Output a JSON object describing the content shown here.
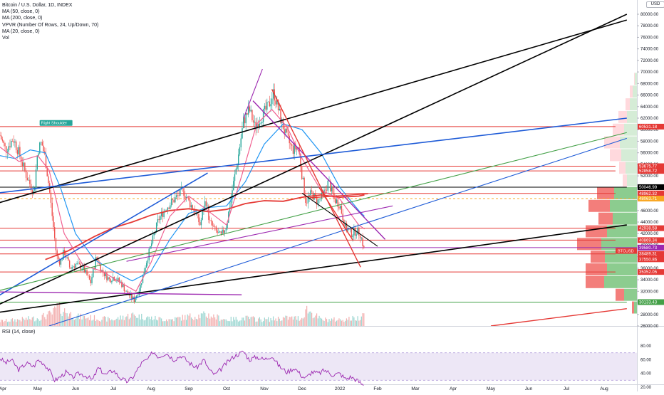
{
  "header": {
    "symbol_line": "Bitcoin / U.S. Dollar, 1D, INDEX",
    "indicators": [
      "MA (50, close, 0)",
      "MA (200, close, 0)",
      "VPVR (Number Of Rows, 24, Up/Down, 70)",
      "MA (20, close, 0)",
      "Vol"
    ],
    "currency": "USD",
    "rsi_label": "RSI (14, close)"
  },
  "colors": {
    "up": "#26a69a",
    "down": "#ef5350",
    "ma50": "#2196f3",
    "ma200": "#e53935",
    "ma20": "#f06292",
    "trend_black": "#000000",
    "trend_blue": "#1e5bd7",
    "trend_purple": "#9c27b0",
    "trend_green": "#43a047",
    "rsi": "#9c27b0",
    "rsi_band": "#ede7f6",
    "hline": "#e53935",
    "vpvr_up": "#66bb6a",
    "vpvr_down": "#ef5350"
  },
  "chart_data": {
    "type": "candlestick",
    "price_axis": {
      "ticks": [
        26000,
        28000,
        30000,
        32000,
        34000,
        36000,
        38000,
        40000,
        42000,
        44000,
        46000,
        48000,
        50000,
        52000,
        54000,
        56000,
        58000,
        60000,
        62000,
        64000,
        66000,
        68000,
        70000,
        72000,
        74000,
        76000,
        78000,
        80000
      ],
      "labels": [
        "26000.00",
        "28000.00",
        "30000.00",
        "32000.00",
        "34000.00",
        "36000.00",
        "38000.00",
        "40000.00",
        "42000.00",
        "44000.00",
        "46000.00",
        "48000.00",
        "50000.00",
        "52000.00",
        "54000.00",
        "56000.00",
        "58000.00",
        "60000.00",
        "62000.00",
        "64000.00",
        "66000.00",
        "68000.00",
        "70000.00",
        "72000.00",
        "74000.00",
        "76000.00",
        "78000.00",
        "80000.00"
      ],
      "range": [
        26000,
        80000
      ]
    },
    "time_axis": {
      "labels": [
        "Apr",
        "May",
        "Jun",
        "Jul",
        "Aug",
        "Sep",
        "Oct",
        "Nov",
        "Dec",
        "2022",
        "Feb",
        "Mar",
        "Apr",
        "May",
        "Jun",
        "Jul",
        "Aug"
      ],
      "months_from_apr_2021": [
        0,
        1,
        2,
        3,
        4,
        5,
        6,
        7,
        8,
        9,
        10,
        11,
        12,
        13,
        14,
        15,
        16
      ]
    },
    "rsi_axis": {
      "ticks": [
        20,
        40,
        60,
        80
      ],
      "labels": [
        "20.00",
        "40.00",
        "60.00",
        "80.00"
      ],
      "band": [
        30,
        70
      ]
    },
    "price_tags": [
      {
        "value": 60531.18,
        "label": "60531.18",
        "color": "#e53935"
      },
      {
        "value": 53675.77,
        "label": "53675.77",
        "color": "#e53935"
      },
      {
        "value": 52858.72,
        "label": "52858.72",
        "color": "#e53935"
      },
      {
        "value": 50046.99,
        "label": "50046.99",
        "color": "#000000"
      },
      {
        "value": 48962.32,
        "label": "48962.32",
        "color": "#e53935"
      },
      {
        "value": 48063.71,
        "label": "48063.71",
        "color": "#f9a825"
      },
      {
        "value": 42938.58,
        "label": "42938.58",
        "color": "#e53935"
      },
      {
        "value": 40869.34,
        "label": "40869.34",
        "color": "#e53935"
      },
      {
        "value": 39580.73,
        "label": "39580.73",
        "color": "#9c27b0"
      },
      {
        "value": 38489.31,
        "label": "38489.31",
        "color": "#e53935"
      },
      {
        "value": 37550.86,
        "label": "37550.86",
        "color": "#e53935"
      },
      {
        "value": 35352.05,
        "label": "35352.05",
        "color": "#e53935"
      },
      {
        "value": 30133.43,
        "label": "30133.43",
        "color": "#43a047"
      }
    ],
    "current_tag": {
      "label": "BTCUSD",
      "value": 39000,
      "color": "#e53935"
    },
    "annotations": [
      {
        "text": "Right Shoulder",
        "month": 1.05,
        "value": 60800
      }
    ],
    "close_path": [
      [
        0.0,
        59000
      ],
      [
        0.15,
        56500
      ],
      [
        0.35,
        58500
      ],
      [
        0.5,
        56000
      ],
      [
        0.7,
        52000
      ],
      [
        0.9,
        49000
      ],
      [
        1.0,
        56500
      ],
      [
        1.1,
        57800
      ],
      [
        1.2,
        55000
      ],
      [
        1.3,
        50000
      ],
      [
        1.4,
        44000
      ],
      [
        1.5,
        38000
      ],
      [
        1.6,
        37000
      ],
      [
        1.7,
        39000
      ],
      [
        1.85,
        36000
      ],
      [
        2.0,
        36700
      ],
      [
        2.2,
        36000
      ],
      [
        2.4,
        33500
      ],
      [
        2.55,
        38000
      ],
      [
        2.7,
        35500
      ],
      [
        2.9,
        34000
      ],
      [
        3.0,
        34500
      ],
      [
        3.2,
        33500
      ],
      [
        3.35,
        31800
      ],
      [
        3.55,
        30500
      ],
      [
        3.7,
        32500
      ],
      [
        3.85,
        36500
      ],
      [
        4.0,
        40000
      ],
      [
        4.2,
        44500
      ],
      [
        4.4,
        46500
      ],
      [
        4.6,
        47800
      ],
      [
        4.85,
        49500
      ],
      [
        5.0,
        47500
      ],
      [
        5.15,
        46000
      ],
      [
        5.3,
        43500
      ],
      [
        5.45,
        48000
      ],
      [
        5.55,
        44000
      ],
      [
        5.7,
        42500
      ],
      [
        5.85,
        41500
      ],
      [
        6.0,
        43500
      ],
      [
        6.15,
        49500
      ],
      [
        6.3,
        55000
      ],
      [
        6.45,
        61500
      ],
      [
        6.6,
        63500
      ],
      [
        6.75,
        60500
      ],
      [
        6.9,
        62000
      ],
      [
        7.1,
        64000
      ],
      [
        7.25,
        66500
      ],
      [
        7.45,
        61500
      ],
      [
        7.6,
        58500
      ],
      [
        7.75,
        56500
      ],
      [
        7.9,
        57000
      ],
      [
        8.0,
        52000
      ],
      [
        8.1,
        47500
      ],
      [
        8.25,
        49000
      ],
      [
        8.4,
        47500
      ],
      [
        8.55,
        48500
      ],
      [
        8.7,
        51000
      ],
      [
        8.85,
        48000
      ],
      [
        9.0,
        47000
      ],
      [
        9.15,
        43000
      ],
      [
        9.3,
        42000
      ],
      [
        9.45,
        42500
      ],
      [
        9.55,
        41800
      ],
      [
        9.65,
        39000
      ]
    ],
    "moving_averages": [
      {
        "name": "MA (50)",
        "color": "#2196f3",
        "points": [
          [
            0,
            55500
          ],
          [
            0.4,
            55000
          ],
          [
            0.8,
            56500
          ],
          [
            1.2,
            56000
          ],
          [
            1.6,
            50000
          ],
          [
            2.0,
            42000
          ],
          [
            2.5,
            37500
          ],
          [
            3.0,
            35500
          ],
          [
            3.5,
            33800
          ],
          [
            4.0,
            35500
          ],
          [
            4.5,
            41000
          ],
          [
            5.0,
            45500
          ],
          [
            5.5,
            46500
          ],
          [
            6.0,
            46800
          ],
          [
            6.5,
            51000
          ],
          [
            7.0,
            57500
          ],
          [
            7.5,
            61000
          ],
          [
            8.0,
            60000
          ],
          [
            8.5,
            56000
          ],
          [
            9.0,
            50000
          ],
          [
            9.5,
            46000
          ],
          [
            9.65,
            45000
          ]
        ]
      },
      {
        "name": "MA (200)",
        "color": "#e53935",
        "points": [
          [
            1.2,
            37500
          ],
          [
            1.8,
            39000
          ],
          [
            2.5,
            41500
          ],
          [
            3.0,
            43000
          ],
          [
            3.5,
            44000
          ],
          [
            4.0,
            45200
          ],
          [
            4.5,
            46000
          ],
          [
            5.0,
            46300
          ],
          [
            5.5,
            45800
          ],
          [
            6.0,
            46200
          ],
          [
            6.5,
            47200
          ],
          [
            7.0,
            47700
          ],
          [
            7.5,
            47600
          ],
          [
            8.0,
            48300
          ],
          [
            8.5,
            48700
          ],
          [
            9.0,
            48300
          ],
          [
            9.5,
            48500
          ],
          [
            9.65,
            48700
          ]
        ]
      },
      {
        "name": "MA (20)",
        "color": "#f06292",
        "points": [
          [
            0,
            57000
          ],
          [
            0.5,
            54500
          ],
          [
            1.0,
            55500
          ],
          [
            1.3,
            53000
          ],
          [
            1.7,
            42000
          ],
          [
            2.2,
            36500
          ],
          [
            2.7,
            35500
          ],
          [
            3.2,
            33500
          ],
          [
            3.6,
            32000
          ],
          [
            4.0,
            37000
          ],
          [
            4.5,
            45000
          ],
          [
            5.0,
            48500
          ],
          [
            5.5,
            46000
          ],
          [
            6.0,
            43500
          ],
          [
            6.4,
            52000
          ],
          [
            6.8,
            61000
          ],
          [
            7.2,
            63500
          ],
          [
            7.6,
            60500
          ],
          [
            8.0,
            55000
          ],
          [
            8.5,
            49500
          ],
          [
            9.0,
            48000
          ],
          [
            9.5,
            43500
          ],
          [
            9.65,
            42800
          ]
        ]
      }
    ],
    "trendlines": [
      {
        "color": "#000000",
        "width": 1.6,
        "from": [
          -0.1,
          47200
        ],
        "to": [
          16.6,
          79000
        ]
      },
      {
        "color": "#000000",
        "width": 1.6,
        "from": [
          -0.1,
          29500
        ],
        "to": [
          16.6,
          80000
        ]
      },
      {
        "color": "#000000",
        "width": 1.6,
        "from": [
          -0.1,
          28300
        ],
        "to": [
          16.6,
          43500
        ]
      },
      {
        "color": "#1e5bd7",
        "width": 1.6,
        "from": [
          -0.1,
          49000
        ],
        "to": [
          16.6,
          62000
        ]
      },
      {
        "color": "#1e5bd7",
        "width": 1.1,
        "from": [
          1.3,
          26000
        ],
        "to": [
          16.6,
          58500
        ]
      },
      {
        "color": "#1e5bd7",
        "width": 1.6,
        "from": [
          -0.1,
          31000
        ],
        "to": [
          5.5,
          52500
        ]
      },
      {
        "color": "#43a047",
        "width": 1.1,
        "from": [
          -0.1,
          32000
        ],
        "to": [
          16.6,
          59500
        ]
      },
      {
        "color": "#9c27b0",
        "width": 1.1,
        "from": [
          3.35,
          37200
        ],
        "to": [
          10.4,
          46800
        ]
      },
      {
        "color": "#9c27b0",
        "width": 1.4,
        "from": [
          6.7,
          65000
        ],
        "to": [
          10.2,
          41000
        ]
      },
      {
        "color": "#9c27b0",
        "width": 1.4,
        "from": [
          -0.1,
          31900
        ],
        "to": [
          6.4,
          31400
        ]
      },
      {
        "color": "#9c27b0",
        "width": 1.1,
        "from": [
          6.45,
          62000
        ],
        "to": [
          6.95,
          70500
        ]
      },
      {
        "color": "#e53935",
        "width": 1.4,
        "from": [
          7.2,
          67000
        ],
        "to": [
          9.55,
          36200
        ]
      },
      {
        "color": "#e53935",
        "width": 1.4,
        "from": [
          8.45,
          50000
        ],
        "to": [
          9.35,
          40800
        ]
      },
      {
        "color": "#e53935",
        "width": 1.4,
        "from": [
          8.2,
          48200
        ],
        "to": [
          9.75,
          48900
        ]
      },
      {
        "color": "#000000",
        "width": 1.1,
        "from": [
          8.0,
          49000
        ],
        "to": [
          10.0,
          39800
        ]
      },
      {
        "color": "#e53935",
        "width": 1.4,
        "from": [
          13.0,
          26000
        ],
        "to": [
          16.6,
          29000
        ]
      }
    ],
    "hlines": [
      {
        "value": 60531.18,
        "color": "#e53935",
        "to": 16.3
      },
      {
        "value": 53675.77,
        "color": "#e53935",
        "to": 16.3
      },
      {
        "value": 52858.72,
        "color": "#e53935",
        "to": 16.3
      },
      {
        "value": 50046.99,
        "color": "#000000",
        "to": 16.6
      },
      {
        "value": 48962.32,
        "color": "#e53935",
        "to": 16.3
      },
      {
        "value": 42938.58,
        "color": "#e53935",
        "to": 16.3
      },
      {
        "value": 40869.34,
        "color": "#e53935",
        "to": 16.3
      },
      {
        "value": 38489.31,
        "color": "#e53935",
        "to": 16.3
      },
      {
        "value": 35352.05,
        "color": "#e53935",
        "to": 16.3
      },
      {
        "value": 30133.43,
        "color": "#43a047",
        "to": 16.6
      }
    ],
    "vpvr_rows": [
      {
        "value": 68800,
        "up": 3,
        "down": 1
      },
      {
        "value": 66600,
        "up": 6,
        "down": 4
      },
      {
        "value": 64400,
        "up": 10,
        "down": 6
      },
      {
        "value": 62200,
        "up": 14,
        "down": 12
      },
      {
        "value": 60000,
        "up": 18,
        "down": 16
      },
      {
        "value": 57800,
        "up": 24,
        "down": 22
      },
      {
        "value": 55600,
        "up": 22,
        "down": 16
      },
      {
        "value": 53400,
        "up": 16,
        "down": 9
      },
      {
        "value": 51200,
        "up": 14,
        "down": 6
      },
      {
        "value": 49000,
        "up": 32,
        "down": 24
      },
      {
        "value": 46800,
        "up": 38,
        "down": 30
      },
      {
        "value": 44600,
        "up": 34,
        "down": 20
      },
      {
        "value": 42400,
        "up": 42,
        "down": 30
      },
      {
        "value": 40200,
        "up": 50,
        "down": 34
      },
      {
        "value": 38000,
        "up": 45,
        "down": 20
      },
      {
        "value": 35800,
        "up": 42,
        "down": 30
      },
      {
        "value": 33600,
        "up": 46,
        "down": 26
      },
      {
        "value": 31400,
        "up": 18,
        "down": 12
      },
      {
        "value": 29200,
        "up": 4,
        "down": 3
      }
    ],
    "volume_path": [
      [
        0.0,
        3
      ],
      [
        0.5,
        4
      ],
      [
        1.0,
        5
      ],
      [
        1.4,
        8
      ],
      [
        1.5,
        12
      ],
      [
        2.0,
        6
      ],
      [
        2.5,
        5
      ],
      [
        3.0,
        4
      ],
      [
        3.5,
        7
      ],
      [
        4.0,
        5
      ],
      [
        4.5,
        4
      ],
      [
        5.0,
        6
      ],
      [
        5.5,
        7
      ],
      [
        6.0,
        4
      ],
      [
        6.5,
        5
      ],
      [
        7.0,
        4
      ],
      [
        7.5,
        5
      ],
      [
        8.0,
        5
      ],
      [
        8.1,
        11
      ],
      [
        8.5,
        4
      ],
      [
        9.0,
        4
      ],
      [
        9.5,
        5
      ],
      [
        9.65,
        10
      ]
    ],
    "rsi_path": [
      [
        0.0,
        62
      ],
      [
        0.15,
        55
      ],
      [
        0.3,
        60
      ],
      [
        0.5,
        45
      ],
      [
        0.7,
        55
      ],
      [
        0.9,
        50
      ],
      [
        1.0,
        60
      ],
      [
        1.15,
        55
      ],
      [
        1.3,
        45
      ],
      [
        1.45,
        30
      ],
      [
        1.6,
        35
      ],
      [
        1.75,
        42
      ],
      [
        1.9,
        34
      ],
      [
        2.1,
        40
      ],
      [
        2.3,
        36
      ],
      [
        2.45,
        30
      ],
      [
        2.6,
        48
      ],
      [
        2.8,
        38
      ],
      [
        3.0,
        45
      ],
      [
        3.15,
        35
      ],
      [
        3.35,
        28
      ],
      [
        3.5,
        33
      ],
      [
        3.75,
        55
      ],
      [
        3.95,
        62
      ],
      [
        4.05,
        72
      ],
      [
        4.2,
        64
      ],
      [
        4.4,
        70
      ],
      [
        4.6,
        60
      ],
      [
        4.8,
        66
      ],
      [
        5.0,
        56
      ],
      [
        5.2,
        48
      ],
      [
        5.4,
        60
      ],
      [
        5.55,
        44
      ],
      [
        5.7,
        38
      ],
      [
        5.85,
        46
      ],
      [
        6.0,
        55
      ],
      [
        6.2,
        65
      ],
      [
        6.45,
        72
      ],
      [
        6.6,
        60
      ],
      [
        6.8,
        64
      ],
      [
        7.0,
        60
      ],
      [
        7.2,
        66
      ],
      [
        7.4,
        50
      ],
      [
        7.6,
        42
      ],
      [
        7.8,
        48
      ],
      [
        8.0,
        36
      ],
      [
        8.1,
        33
      ],
      [
        8.25,
        42
      ],
      [
        8.45,
        40
      ],
      [
        8.6,
        45
      ],
      [
        8.8,
        38
      ],
      [
        9.0,
        40
      ],
      [
        9.15,
        32
      ],
      [
        9.3,
        35
      ],
      [
        9.45,
        30
      ],
      [
        9.6,
        24
      ],
      [
        9.65,
        22
      ]
    ]
  }
}
